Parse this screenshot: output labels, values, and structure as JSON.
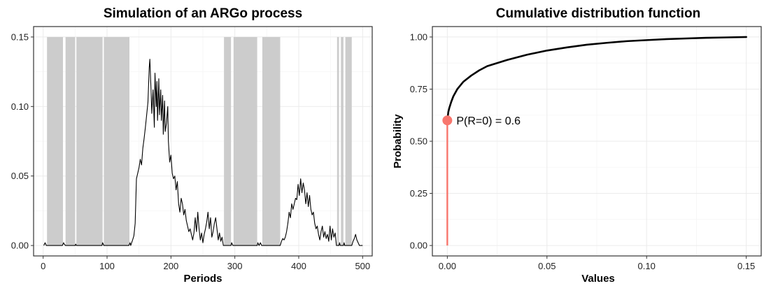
{
  "chart_data": [
    {
      "type": "line",
      "title": "Simulation of an ARGo process",
      "xlabel": "Periods",
      "ylabel": "",
      "xlim": [
        -15,
        515
      ],
      "ylim": [
        -0.0075,
        0.1575
      ],
      "x_ticks": [
        0,
        100,
        200,
        300,
        400,
        500
      ],
      "x_tick_labels": [
        "0",
        "100",
        "200",
        "300",
        "400",
        "500"
      ],
      "y_ticks": [
        0.0,
        0.05,
        0.1,
        0.15
      ],
      "y_tick_labels": [
        "0.00",
        "0.05",
        "0.10",
        "0.15"
      ],
      "grid": true,
      "shaded_regions": {
        "color": "#cccccc",
        "ymax": 0.15,
        "intervals": [
          [
            6,
            31
          ],
          [
            35,
            50
          ],
          [
            52,
            93
          ],
          [
            95,
            135
          ],
          [
            283,
            294
          ],
          [
            298,
            335
          ],
          [
            343,
            371
          ],
          [
            460,
            463
          ],
          [
            466,
            470
          ],
          [
            473,
            483
          ]
        ]
      },
      "series": [
        {
          "color": "#000000",
          "points": [
            [
              1,
              0
            ],
            [
              3,
              0.002
            ],
            [
              5,
              0
            ],
            [
              30,
              0
            ],
            [
              32,
              0.002
            ],
            [
              33,
              0.001
            ],
            [
              35,
              0
            ],
            [
              50,
              0
            ],
            [
              51,
              0.001
            ],
            [
              52,
              0
            ],
            [
              92,
              0
            ],
            [
              93,
              0.002
            ],
            [
              95,
              0
            ],
            [
              134,
              0
            ],
            [
              136,
              0.002
            ],
            [
              137,
              0
            ],
            [
              140,
              0.004
            ],
            [
              142,
              0.007
            ],
            [
              144,
              0.016
            ],
            [
              146,
              0.048
            ],
            [
              148,
              0.052
            ],
            [
              150,
              0.056
            ],
            [
              152,
              0.062
            ],
            [
              154,
              0.058
            ],
            [
              156,
              0.07
            ],
            [
              158,
              0.077
            ],
            [
              160,
              0.085
            ],
            [
              162,
              0.094
            ],
            [
              164,
              0.103
            ],
            [
              166,
              0.128
            ],
            [
              167,
              0.134
            ],
            [
              169,
              0.11
            ],
            [
              170,
              0.095
            ],
            [
              172,
              0.112
            ],
            [
              174,
              0.085
            ],
            [
              175,
              0.124
            ],
            [
              177,
              0.1
            ],
            [
              178,
              0.118
            ],
            [
              179,
              0.09
            ],
            [
              181,
              0.12
            ],
            [
              182,
              0.094
            ],
            [
              184,
              0.112
            ],
            [
              185,
              0.09
            ],
            [
              187,
              0.108
            ],
            [
              188,
              0.08
            ],
            [
              190,
              0.104
            ],
            [
              191,
              0.082
            ],
            [
              193,
              0.088
            ],
            [
              195,
              0.1
            ],
            [
              196,
              0.075
            ],
            [
              198,
              0.06
            ],
            [
              200,
              0.065
            ],
            [
              202,
              0.052
            ],
            [
              204,
              0.048
            ],
            [
              206,
              0.05
            ],
            [
              208,
              0.04
            ],
            [
              210,
              0.046
            ],
            [
              212,
              0.03
            ],
            [
              214,
              0.024
            ],
            [
              216,
              0.034
            ],
            [
              218,
              0.03
            ],
            [
              220,
              0.022
            ],
            [
              222,
              0.026
            ],
            [
              224,
              0.018
            ],
            [
              226,
              0.014
            ],
            [
              228,
              0.01
            ],
            [
              230,
              0.012
            ],
            [
              232,
              0.008
            ],
            [
              234,
              0.004
            ],
            [
              236,
              0.009
            ],
            [
              238,
              0.02
            ],
            [
              240,
              0.01
            ],
            [
              242,
              0.024
            ],
            [
              244,
              0.012
            ],
            [
              246,
              0.004
            ],
            [
              248,
              0.009
            ],
            [
              250,
              0.002
            ],
            [
              252,
              0.008
            ],
            [
              254,
              0.012
            ],
            [
              256,
              0.017
            ],
            [
              258,
              0.024
            ],
            [
              260,
              0.012
            ],
            [
              262,
              0.02
            ],
            [
              264,
              0.006
            ],
            [
              266,
              0.01
            ],
            [
              268,
              0.016
            ],
            [
              270,
              0.02
            ],
            [
              272,
              0.012
            ],
            [
              274,
              0.004
            ],
            [
              276,
              0.009
            ],
            [
              278,
              0.003
            ],
            [
              280,
              0.006
            ],
            [
              282,
              0
            ],
            [
              294,
              0
            ],
            [
              295,
              0.002
            ],
            [
              297,
              0
            ],
            [
              335,
              0
            ],
            [
              336,
              0.002
            ],
            [
              338,
              0
            ],
            [
              340,
              0.002
            ],
            [
              342,
              0
            ],
            [
              371,
              0
            ],
            [
              373,
              0.003
            ],
            [
              375,
              0.005
            ],
            [
              377,
              0.004
            ],
            [
              379,
              0.006
            ],
            [
              381,
              0.01
            ],
            [
              383,
              0.016
            ],
            [
              385,
              0.024
            ],
            [
              387,
              0.02
            ],
            [
              389,
              0.03
            ],
            [
              391,
              0.026
            ],
            [
              393,
              0.03
            ],
            [
              395,
              0.034
            ],
            [
              397,
              0.033
            ],
            [
              399,
              0.044
            ],
            [
              401,
              0.036
            ],
            [
              403,
              0.048
            ],
            [
              405,
              0.038
            ],
            [
              407,
              0.045
            ],
            [
              409,
              0.04
            ],
            [
              411,
              0.03
            ],
            [
              413,
              0.038
            ],
            [
              415,
              0.028
            ],
            [
              417,
              0.036
            ],
            [
              419,
              0.026
            ],
            [
              421,
              0.022
            ],
            [
              423,
              0.024
            ],
            [
              425,
              0.016
            ],
            [
              427,
              0.012
            ],
            [
              429,
              0.014
            ],
            [
              431,
              0.008
            ],
            [
              433,
              0.004
            ],
            [
              435,
              0.01
            ],
            [
              437,
              0.014
            ],
            [
              439,
              0.006
            ],
            [
              441,
              0.01
            ],
            [
              443,
              0.005
            ],
            [
              445,
              0.008
            ],
            [
              447,
              0.003
            ],
            [
              449,
              0.014
            ],
            [
              451,
              0.004
            ],
            [
              453,
              0.012
            ],
            [
              455,
              0.006
            ],
            [
              457,
              0.009
            ],
            [
              459,
              0
            ],
            [
              463,
              0
            ],
            [
              464,
              0.002
            ],
            [
              465,
              0
            ],
            [
              470,
              0
            ],
            [
              471,
              0.002
            ],
            [
              472,
              0
            ],
            [
              483,
              0
            ],
            [
              485,
              0.003
            ],
            [
              487,
              0.005
            ],
            [
              489,
              0.008
            ],
            [
              491,
              0.004
            ],
            [
              493,
              0.002
            ],
            [
              495,
              0
            ],
            [
              500,
              0
            ]
          ]
        }
      ]
    },
    {
      "type": "line",
      "title": "Cumulative distribution function",
      "xlabel": "Values",
      "ylabel": "Probability",
      "xlim": [
        -0.0075,
        0.1575
      ],
      "ylim": [
        -0.05,
        1.05
      ],
      "x_ticks": [
        0.0,
        0.05,
        0.1,
        0.15
      ],
      "x_tick_labels": [
        "0.00",
        "0.05",
        "0.10",
        "0.15"
      ],
      "y_ticks": [
        0.0,
        0.25,
        0.5,
        0.75,
        1.0
      ],
      "y_tick_labels": [
        "0.00",
        "0.25",
        "0.50",
        "0.75",
        "1.00"
      ],
      "grid": true,
      "series": [
        {
          "color": "#000000",
          "points": [
            [
              0,
              0.6
            ],
            [
              0.0005,
              0.64
            ],
            [
              0.001,
              0.66
            ],
            [
              0.002,
              0.69
            ],
            [
              0.003,
              0.715
            ],
            [
              0.005,
              0.75
            ],
            [
              0.008,
              0.785
            ],
            [
              0.012,
              0.815
            ],
            [
              0.016,
              0.84
            ],
            [
              0.02,
              0.86
            ],
            [
              0.03,
              0.89
            ],
            [
              0.04,
              0.915
            ],
            [
              0.05,
              0.935
            ],
            [
              0.06,
              0.95
            ],
            [
              0.07,
              0.963
            ],
            [
              0.08,
              0.972
            ],
            [
              0.09,
              0.98
            ],
            [
              0.1,
              0.985
            ],
            [
              0.11,
              0.99
            ],
            [
              0.12,
              0.993
            ],
            [
              0.13,
              0.996
            ],
            [
              0.14,
              0.998
            ],
            [
              0.15,
              1.0
            ]
          ]
        }
      ],
      "mass_at_zero": {
        "x": 0,
        "probability": 0.6,
        "label": "P(R=0) = 0.6",
        "color": "#f8766d"
      }
    }
  ]
}
